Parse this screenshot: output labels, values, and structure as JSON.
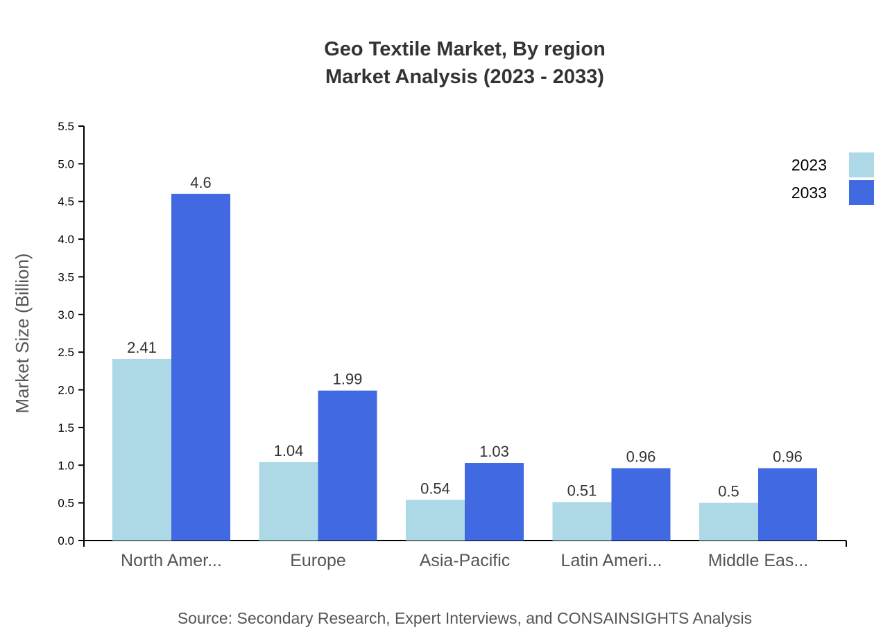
{
  "chart_data": {
    "type": "bar",
    "title": "Geo Textile Market, By region",
    "subtitle": "Market Analysis (2023 - 2033)",
    "xlabel": "",
    "ylabel": "Market Size (Billion)",
    "ylim": [
      0,
      5.5
    ],
    "yticks": [
      "0.0",
      "0.5",
      "1.0",
      "1.5",
      "2.0",
      "2.5",
      "3.0",
      "3.5",
      "4.0",
      "4.5",
      "5.0",
      "5.5"
    ],
    "categories": [
      "North Amer...",
      "Europe",
      "Asia-Pacific",
      "Latin Ameri...",
      "Middle Eas..."
    ],
    "series": [
      {
        "name": "2023",
        "color": "#add8e6",
        "values": [
          2.41,
          1.04,
          0.54,
          0.51,
          0.5
        ]
      },
      {
        "name": "2033",
        "color": "#4169e1",
        "values": [
          4.6,
          1.99,
          1.03,
          0.96,
          0.96
        ]
      }
    ],
    "legend_position": "top-right",
    "grid": false,
    "source": "Source: Secondary Research, Expert Interviews, and CONSAINSIGHTS Analysis"
  }
}
